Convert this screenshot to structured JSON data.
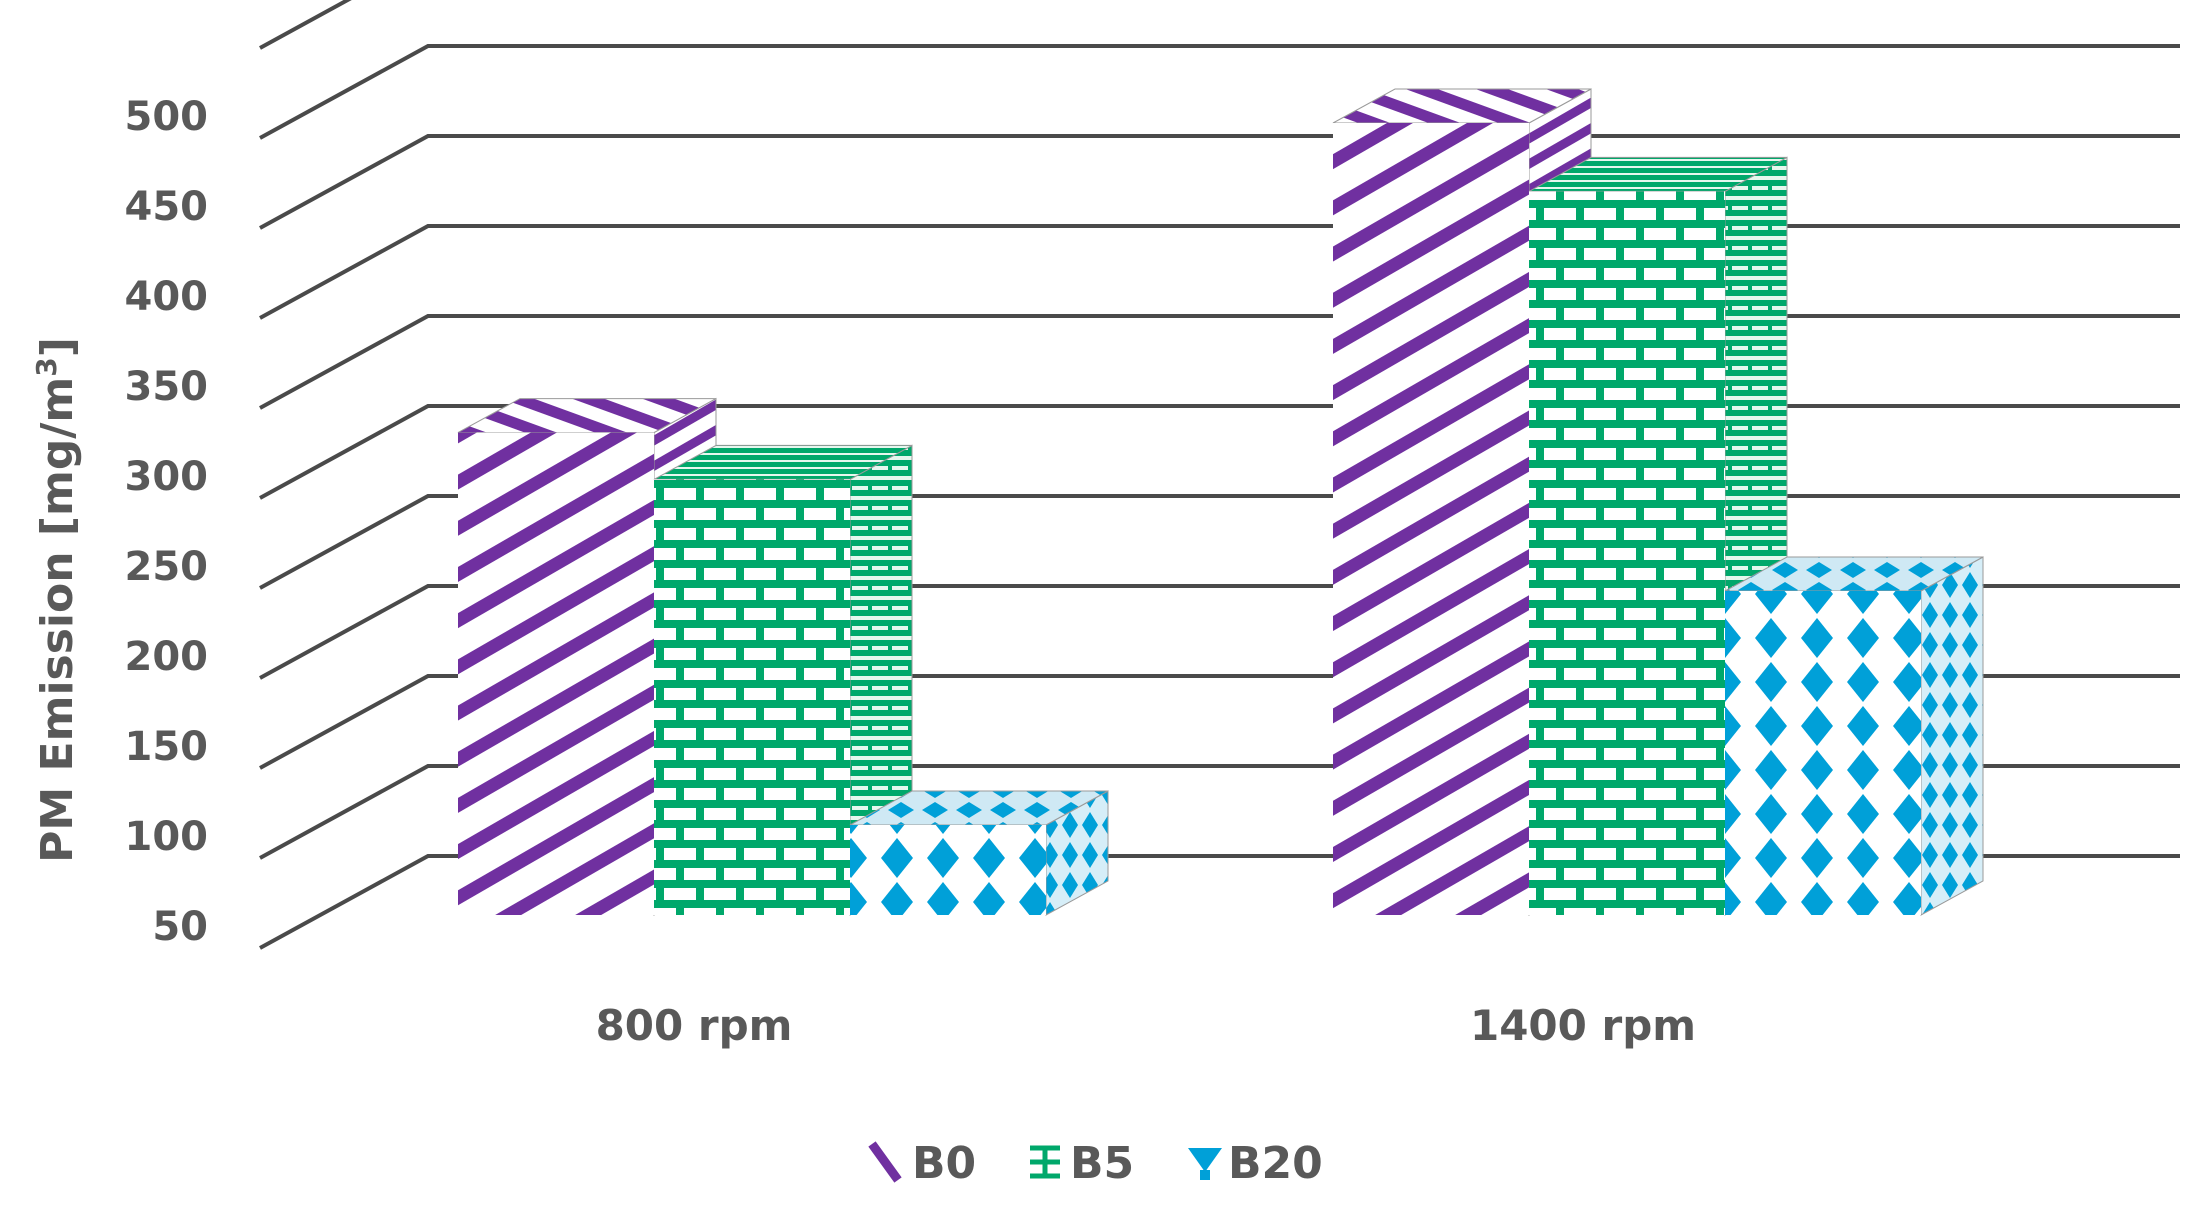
{
  "chart_data": {
    "type": "bar",
    "categories": [
      "800 rpm",
      "1400 rpm"
    ],
    "series": [
      {
        "name": "B0",
        "values": [
          318,
          490
        ],
        "color": "#7030a0",
        "pattern": "diagonal-stripes"
      },
      {
        "name": "B5",
        "values": [
          292,
          452
        ],
        "color": "#00a86b",
        "pattern": "bricks"
      },
      {
        "name": "B20",
        "values": [
          100,
          230
        ],
        "color": "#00a0d8",
        "pattern": "diamonds"
      }
    ],
    "ylabel": "PM Emission [mg/m3]",
    "ylabel_parts": {
      "main": "PM Emission [mg/m",
      "superscript": "3",
      "close": "]"
    },
    "xlabel": "",
    "ylim": [
      50,
      500
    ],
    "yticks": [
      "50",
      "100",
      "150",
      "200",
      "250",
      "300",
      "350",
      "400",
      "450",
      "500"
    ],
    "grid": true,
    "legend": {
      "placement": "bottom",
      "entries": [
        "B0",
        "B5",
        "B20"
      ]
    },
    "style": "3d-clustered-column"
  }
}
